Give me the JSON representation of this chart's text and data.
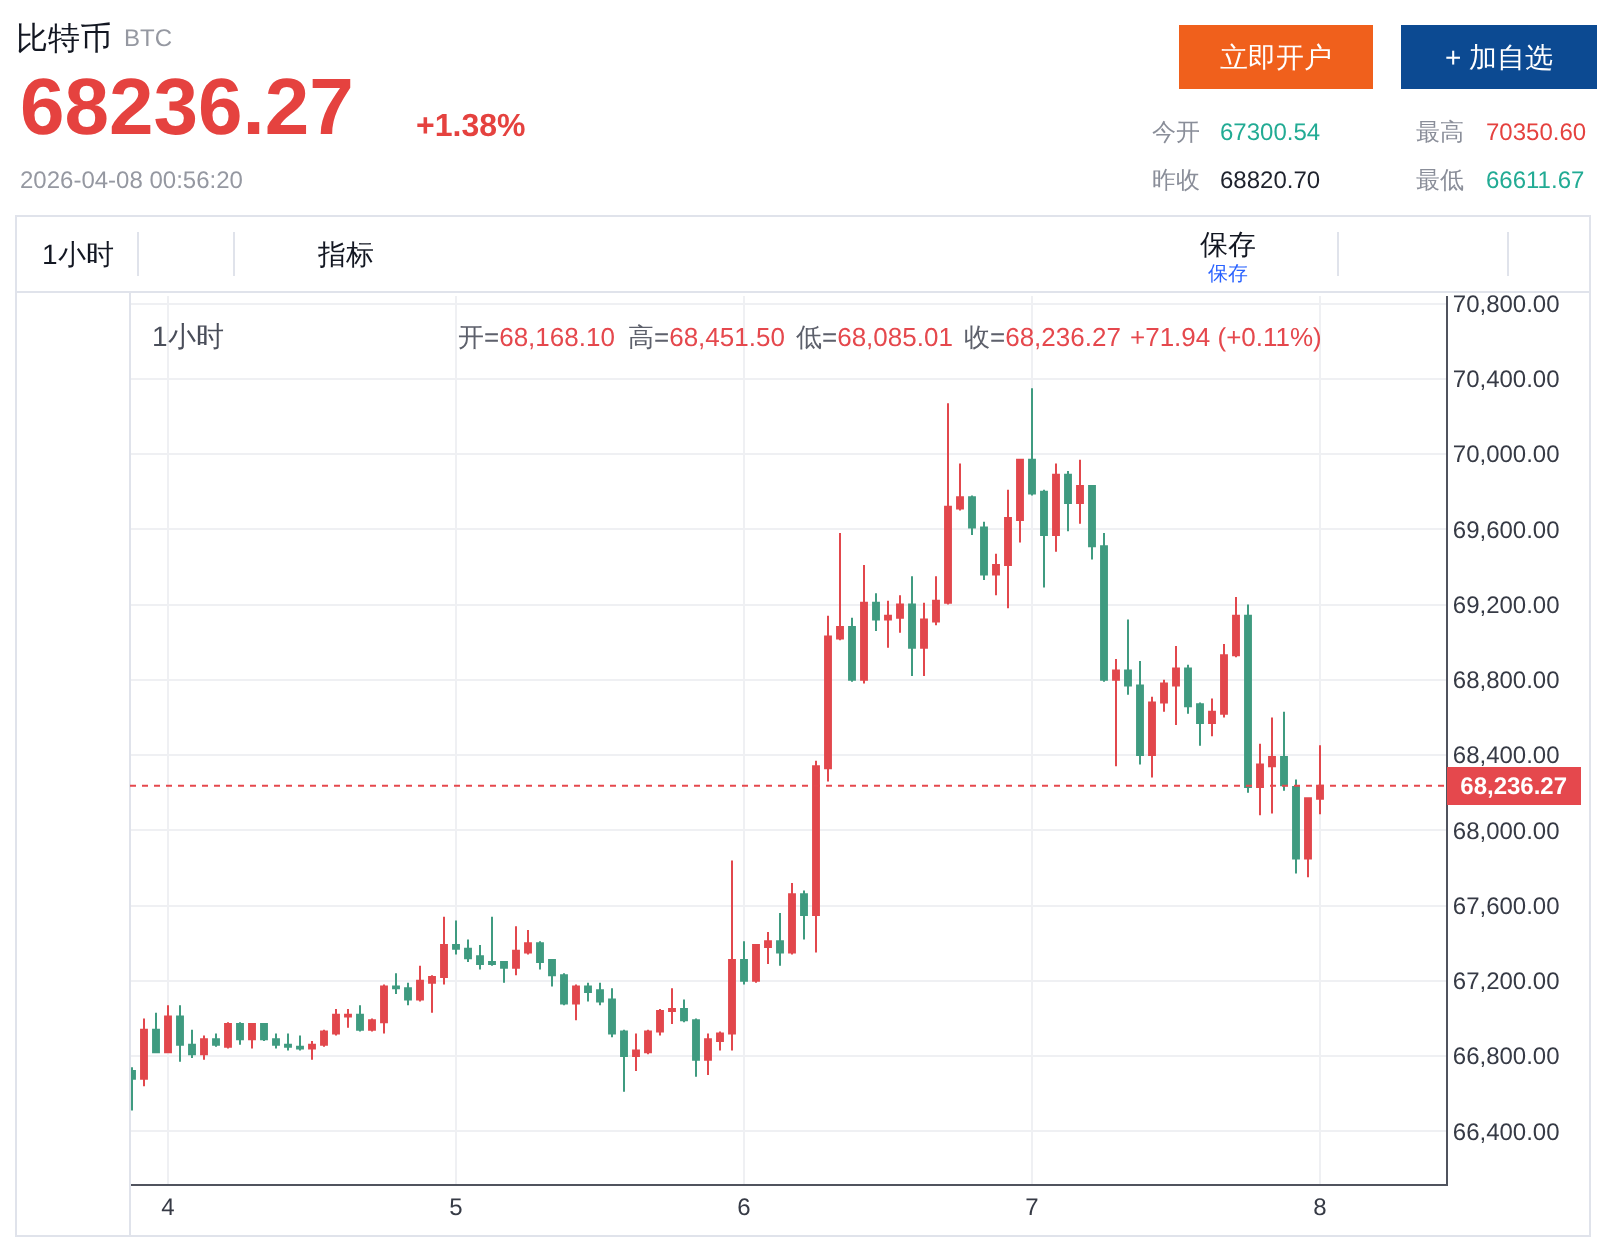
{
  "chart_data": {
    "type": "candlestick",
    "title": "比特币",
    "subtitle": "BTC",
    "x": [
      "2026-04-03T21:00",
      "2026-04-03T22:00",
      "2026-04-03T23:00",
      "2026-04-04T00:00",
      "2026-04-04T01:00",
      "2026-04-04T02:00",
      "2026-04-04T03:00",
      "2026-04-04T04:00",
      "2026-04-04T05:00",
      "2026-04-04T06:00",
      "2026-04-04T07:00",
      "2026-04-04T08:00",
      "2026-04-04T09:00",
      "2026-04-04T10:00",
      "2026-04-04T11:00",
      "2026-04-04T12:00",
      "2026-04-04T13:00",
      "2026-04-04T14:00",
      "2026-04-04T15:00",
      "2026-04-04T16:00",
      "2026-04-04T17:00",
      "2026-04-04T18:00",
      "2026-04-04T19:00",
      "2026-04-04T20:00",
      "2026-04-04T21:00",
      "2026-04-04T22:00",
      "2026-04-04T23:00",
      "2026-04-05T00:00",
      "2026-04-05T01:00",
      "2026-04-05T02:00",
      "2026-04-05T03:00",
      "2026-04-05T04:00",
      "2026-04-05T05:00",
      "2026-04-05T06:00",
      "2026-04-05T07:00",
      "2026-04-05T08:00",
      "2026-04-05T09:00",
      "2026-04-05T10:00",
      "2026-04-05T11:00",
      "2026-04-05T12:00",
      "2026-04-05T13:00",
      "2026-04-05T14:00",
      "2026-04-05T15:00",
      "2026-04-05T16:00",
      "2026-04-05T17:00",
      "2026-04-05T18:00",
      "2026-04-05T19:00",
      "2026-04-05T20:00",
      "2026-04-05T21:00",
      "2026-04-05T22:00",
      "2026-04-05T23:00",
      "2026-04-06T00:00",
      "2026-04-06T01:00",
      "2026-04-06T02:00",
      "2026-04-06T03:00",
      "2026-04-06T04:00",
      "2026-04-06T05:00",
      "2026-04-06T06:00",
      "2026-04-06T07:00",
      "2026-04-06T08:00",
      "2026-04-06T09:00",
      "2026-04-06T10:00",
      "2026-04-06T11:00",
      "2026-04-06T12:00",
      "2026-04-06T13:00",
      "2026-04-06T14:00",
      "2026-04-06T15:00",
      "2026-04-06T16:00",
      "2026-04-06T17:00",
      "2026-04-06T18:00",
      "2026-04-06T19:00",
      "2026-04-06T20:00",
      "2026-04-06T21:00",
      "2026-04-06T22:00",
      "2026-04-06T23:00",
      "2026-04-07T00:00",
      "2026-04-07T01:00",
      "2026-04-07T02:00",
      "2026-04-07T03:00",
      "2026-04-07T04:00",
      "2026-04-07T05:00",
      "2026-04-07T06:00",
      "2026-04-07T07:00",
      "2026-04-07T08:00",
      "2026-04-07T09:00",
      "2026-04-07T10:00",
      "2026-04-07T11:00",
      "2026-04-07T12:00",
      "2026-04-07T13:00",
      "2026-04-07T14:00",
      "2026-04-07T15:00",
      "2026-04-07T16:00",
      "2026-04-07T17:00",
      "2026-04-07T18:00",
      "2026-04-07T19:00",
      "2026-04-07T20:00",
      "2026-04-07T21:00",
      "2026-04-07T22:00",
      "2026-04-07T23:00",
      "2026-04-08T00:00"
    ],
    "ohlc": [
      [
        66720,
        66740,
        66510,
        66680
      ],
      [
        66680,
        67000,
        66640,
        66940
      ],
      [
        66940,
        67030,
        66820,
        66820
      ],
      [
        66820,
        67070,
        66820,
        67010
      ],
      [
        67010,
        67070,
        66770,
        66860
      ],
      [
        66860,
        66940,
        66790,
        66810
      ],
      [
        66810,
        66910,
        66780,
        66890
      ],
      [
        66890,
        66920,
        66850,
        66860
      ],
      [
        66850,
        66980,
        66840,
        66970
      ],
      [
        66970,
        66980,
        66860,
        66890
      ],
      [
        66890,
        66970,
        66840,
        66970
      ],
      [
        66970,
        66970,
        66880,
        66890
      ],
      [
        66890,
        66920,
        66840,
        66860
      ],
      [
        66860,
        66920,
        66830,
        66850
      ],
      [
        66850,
        66910,
        66830,
        66840
      ],
      [
        66840,
        66880,
        66780,
        66860
      ],
      [
        66860,
        66940,
        66850,
        66930
      ],
      [
        66920,
        67050,
        66910,
        67020
      ],
      [
        67010,
        67050,
        66950,
        67020
      ],
      [
        67020,
        67070,
        66930,
        66940
      ],
      [
        66940,
        67000,
        66930,
        66990
      ],
      [
        66980,
        67180,
        66920,
        67170
      ],
      [
        67170,
        67240,
        67130,
        67160
      ],
      [
        67160,
        67190,
        67070,
        67100
      ],
      [
        67100,
        67280,
        67090,
        67200
      ],
      [
        67190,
        67230,
        67030,
        67220
      ],
      [
        67220,
        67540,
        67180,
        67390
      ],
      [
        67390,
        67520,
        67340,
        67370
      ],
      [
        67370,
        67420,
        67300,
        67320
      ],
      [
        67330,
        67390,
        67260,
        67290
      ],
      [
        67300,
        67540,
        67280,
        67290
      ],
      [
        67300,
        67300,
        67190,
        67270
      ],
      [
        67270,
        67490,
        67230,
        67360
      ],
      [
        67350,
        67470,
        67340,
        67400
      ],
      [
        67400,
        67410,
        67260,
        67300
      ],
      [
        67310,
        67310,
        67170,
        67230
      ],
      [
        67230,
        67240,
        67070,
        67080
      ],
      [
        67080,
        67180,
        66990,
        67170
      ],
      [
        67170,
        67190,
        67090,
        67140
      ],
      [
        67150,
        67190,
        67070,
        67090
      ],
      [
        67100,
        67160,
        66900,
        66920
      ],
      [
        66930,
        66940,
        66610,
        66800
      ],
      [
        66800,
        66920,
        66720,
        66830
      ],
      [
        66820,
        66940,
        66810,
        66930
      ],
      [
        66930,
        67050,
        66910,
        67040
      ],
      [
        67040,
        67160,
        66970,
        67050
      ],
      [
        67050,
        67100,
        66980,
        66990
      ],
      [
        66990,
        67000,
        66690,
        66780
      ],
      [
        66780,
        66920,
        66700,
        66890
      ],
      [
        66880,
        66930,
        66830,
        66920
      ],
      [
        66920,
        67840,
        66830,
        67310
      ],
      [
        67310,
        67410,
        67180,
        67200
      ],
      [
        67200,
        67390,
        67190,
        67390
      ],
      [
        67380,
        67460,
        67290,
        67410
      ],
      [
        67410,
        67560,
        67280,
        67350
      ],
      [
        67350,
        67720,
        67340,
        67660
      ],
      [
        67660,
        67680,
        67420,
        67550
      ],
      [
        67550,
        68370,
        67350,
        68340
      ],
      [
        68330,
        69140,
        68260,
        69030
      ],
      [
        69020,
        69580,
        69010,
        69080
      ],
      [
        69080,
        69130,
        68790,
        68800
      ],
      [
        68800,
        69410,
        68780,
        69210
      ],
      [
        69210,
        69260,
        69060,
        69120
      ],
      [
        69120,
        69220,
        68970,
        69140
      ],
      [
        69130,
        69250,
        69050,
        69200
      ],
      [
        69200,
        69350,
        68820,
        68970
      ],
      [
        68970,
        69210,
        68820,
        69120
      ],
      [
        69110,
        69350,
        69090,
        69220
      ],
      [
        69210,
        70270,
        69200,
        69720
      ],
      [
        69710,
        69950,
        69700,
        69770
      ],
      [
        69770,
        69780,
        69570,
        69610
      ],
      [
        69610,
        69640,
        69330,
        69360
      ],
      [
        69360,
        69470,
        69250,
        69410
      ],
      [
        69410,
        69810,
        69180,
        69660
      ],
      [
        69650,
        69970,
        69530,
        69970
      ],
      [
        69970,
        70350,
        69780,
        69790
      ],
      [
        69800,
        69810,
        69290,
        69570
      ],
      [
        69570,
        69950,
        69480,
        69890
      ],
      [
        69890,
        69910,
        69590,
        69740
      ],
      [
        69740,
        69970,
        69630,
        69830
      ],
      [
        69830,
        69830,
        69440,
        69510
      ],
      [
        69510,
        69580,
        68790,
        68800
      ],
      [
        68800,
        68910,
        68340,
        68850
      ],
      [
        68850,
        69120,
        68720,
        68770
      ],
      [
        68770,
        68900,
        68350,
        68400
      ],
      [
        68400,
        68710,
        68280,
        68680
      ],
      [
        68680,
        68800,
        68630,
        68780
      ],
      [
        68770,
        68980,
        68560,
        68860
      ],
      [
        68860,
        68880,
        68620,
        68660
      ],
      [
        68670,
        68680,
        68450,
        68570
      ],
      [
        68570,
        68700,
        68500,
        68630
      ],
      [
        68620,
        68990,
        68600,
        68930
      ],
      [
        68930,
        69240,
        68920,
        69140
      ],
      [
        69140,
        69200,
        68200,
        68230
      ],
      [
        68230,
        68460,
        68080,
        68350
      ],
      [
        68340,
        68600,
        68090,
        68390
      ],
      [
        68390,
        68630,
        68210,
        68240
      ],
      [
        68230,
        68270,
        67770,
        67850
      ],
      [
        67850,
        68170,
        67750,
        68170
      ],
      [
        68168.1,
        68451.5,
        68085.01,
        68236.27
      ]
    ],
    "colors": [
      "#3f9b80",
      "#e2474c",
      "#3f9b80",
      "#e2474c",
      "#3f9b80",
      "#3f9b80",
      "#e2474c",
      "#3f9b80",
      "#e2474c",
      "#3f9b80",
      "#e2474c",
      "#3f9b80",
      "#3f9b80",
      "#3f9b80",
      "#3f9b80",
      "#e2474c",
      "#e2474c",
      "#e2474c",
      "#e2474c",
      "#3f9b80",
      "#e2474c",
      "#e2474c",
      "#3f9b80",
      "#3f9b80",
      "#e2474c",
      "#e2474c",
      "#e2474c",
      "#3f9b80",
      "#3f9b80",
      "#3f9b80",
      "#3f9b80",
      "#3f9b80",
      "#e2474c",
      "#e2474c",
      "#3f9b80",
      "#3f9b80",
      "#3f9b80",
      "#e2474c",
      "#3f9b80",
      "#3f9b80",
      "#3f9b80",
      "#3f9b80",
      "#e2474c",
      "#e2474c",
      "#e2474c",
      "#e2474c",
      "#3f9b80",
      "#3f9b80",
      "#e2474c",
      "#e2474c",
      "#e2474c",
      "#3f9b80",
      "#e2474c",
      "#e2474c",
      "#3f9b80",
      "#e2474c",
      "#3f9b80",
      "#e2474c",
      "#e2474c",
      "#e2474c",
      "#3f9b80",
      "#e2474c",
      "#3f9b80",
      "#e2474c",
      "#e2474c",
      "#3f9b80",
      "#e2474c",
      "#e2474c",
      "#e2474c",
      "#e2474c",
      "#3f9b80",
      "#3f9b80",
      "#e2474c",
      "#e2474c",
      "#e2474c",
      "#3f9b80",
      "#3f9b80",
      "#e2474c",
      "#3f9b80",
      "#e2474c",
      "#3f9b80",
      "#3f9b80",
      "#e2474c",
      "#3f9b80",
      "#3f9b80",
      "#e2474c",
      "#e2474c",
      "#e2474c",
      "#3f9b80",
      "#3f9b80",
      "#e2474c",
      "#e2474c",
      "#e2474c",
      "#3f9b80",
      "#e2474c",
      "#e2474c",
      "#3f9b80",
      "#3f9b80",
      "#e2474c",
      "#e2474c"
    ],
    "xlim": [
      "2026-04-03T20:50",
      "2026-04-08T10:30"
    ],
    "xticks": [
      {
        "value": "2026-04-04",
        "label": "4"
      },
      {
        "value": "2026-04-05",
        "label": "5"
      },
      {
        "value": "2026-04-06",
        "label": "6"
      },
      {
        "value": "2026-04-07",
        "label": "7"
      },
      {
        "value": "2026-04-08",
        "label": "8"
      }
    ],
    "ylim": [
      66120,
      70840
    ],
    "yticks": [
      {
        "value": 66400,
        "label": "66,400.00"
      },
      {
        "value": 66800,
        "label": "66,800.00"
      },
      {
        "value": 67200,
        "label": "67,200.00"
      },
      {
        "value": 67600,
        "label": "67,600.00"
      },
      {
        "value": 68000,
        "label": "68,000.00"
      },
      {
        "value": 68400,
        "label": "68,400.00"
      },
      {
        "value": 68800,
        "label": "68,800.00"
      },
      {
        "value": 69200,
        "label": "69,200.00"
      },
      {
        "value": 69600,
        "label": "69,600.00"
      },
      {
        "value": 70000,
        "label": "70,000.00"
      },
      {
        "value": 70400,
        "label": "70,400.00"
      },
      {
        "value": 70800,
        "label": "70,800.00"
      }
    ],
    "grid": true,
    "ref_lines": [
      {
        "axis": "y",
        "value": 68236.27,
        "label": "68,236.27",
        "color": "#e5484d",
        "line_style": "dotted"
      }
    ],
    "annotations": [
      "68236.27",
      "+1.38%",
      "2026-04-08 00:56:20",
      "立即开户",
      "+ 加自选",
      "今开",
      "67300.54",
      "最高",
      "70350.60",
      "昨收",
      "68820.70",
      "最低",
      "66611.67",
      "1小时",
      "指标",
      "保存",
      "保存",
      "1小时",
      "开=68,168.10",
      "高=68,451.50",
      "低=68,085.01",
      "收=68,236.27",
      "+71.94 (+0.11%)"
    ]
  }
}
